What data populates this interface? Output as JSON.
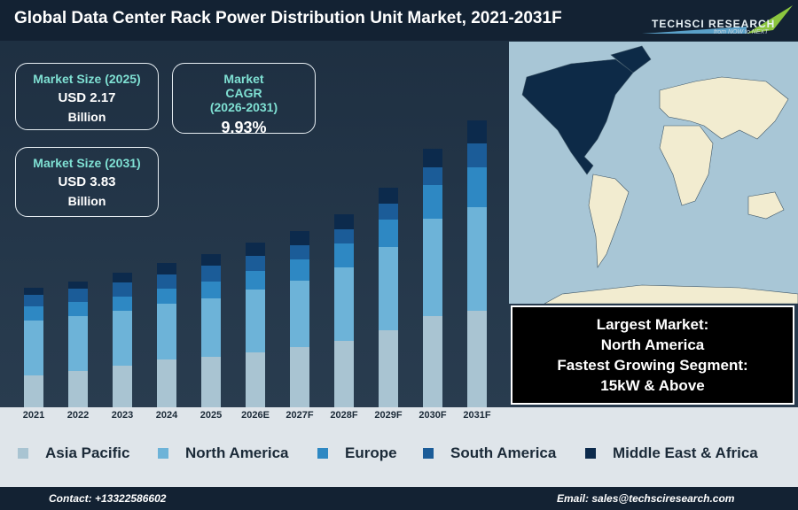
{
  "header": {
    "title": "Global Data Center Rack Power Distribution Unit Market, 2021-2031F",
    "logo": "TECHSCI RESEARCH",
    "tagline": "from NOW to NEXT"
  },
  "kpis": [
    {
      "label": "Market Size (2025)",
      "value": "USD 2.17",
      "unit": "Billion"
    },
    {
      "label": "Market CAGR (2026-2031)",
      "value": "9.93%"
    },
    {
      "label": "Market Size (2031)",
      "value": "USD 3.83",
      "unit": "Billion"
    }
  ],
  "highlight": {
    "lines": [
      "Largest Market:",
      "North America",
      "Fastest Growing Segment:",
      "15kW & Above"
    ]
  },
  "footer": {
    "contact": "Contact: +13322586602",
    "email": "Email: sales@techsciresearch.com"
  },
  "chart_data": {
    "type": "stacked-bar",
    "categories": [
      "2021",
      "2022",
      "2023",
      "2024",
      "2025",
      "2026E",
      "2027F",
      "2028F",
      "2029F",
      "2030F",
      "2031F"
    ],
    "series": [
      {
        "name": "Asia Pacific",
        "color": "#a9c4d2",
        "values": [
          36,
          41,
          47,
          54,
          57,
          62,
          68,
          75,
          87,
          103,
          109
        ]
      },
      {
        "name": "North America",
        "color": "#6db3d8",
        "values": [
          62,
          62,
          62,
          63,
          66,
          71,
          75,
          83,
          94,
          110,
          117
        ]
      },
      {
        "name": "Europe",
        "color": "#2e88c3",
        "values": [
          16,
          16,
          16,
          17,
          19,
          21,
          24,
          27,
          31,
          38,
          45
        ]
      },
      {
        "name": "South America",
        "color": "#1b5c98",
        "values": [
          13,
          15,
          16,
          16,
          18,
          17,
          16,
          16,
          18,
          20,
          27
        ]
      },
      {
        "name": "Middle East & Africa",
        "color": "#0c2a4c",
        "values": [
          8,
          8,
          11,
          13,
          13,
          15,
          16,
          17,
          18,
          21,
          26
        ]
      }
    ]
  }
}
